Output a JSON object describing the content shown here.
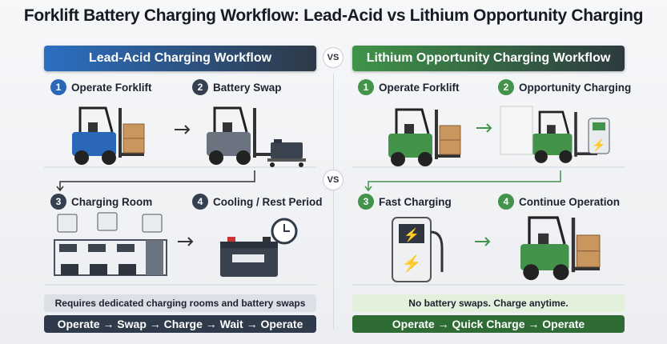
{
  "title": "Forklift Battery Charging Workflow: Lead-Acid vs Lithium Opportunity Charging",
  "vs_label": "VS",
  "left": {
    "header": "Lead-Acid Charging Workflow",
    "steps": [
      {
        "num": "1",
        "label": "Operate Forklift"
      },
      {
        "num": "2",
        "label": "Battery Swap"
      },
      {
        "num": "3",
        "label": "Charging Room"
      },
      {
        "num": "4",
        "label": "Cooling / Rest Period"
      }
    ],
    "note": "Requires dedicated charging rooms and battery swaps",
    "flow": "Operate → Swap → Charge → Wait → Operate"
  },
  "right": {
    "header": "Lithium Opportunity Charging Workflow",
    "steps": [
      {
        "num": "1",
        "label": "Operate Forklift"
      },
      {
        "num": "2",
        "label": "Opportunity Charging"
      },
      {
        "num": "3",
        "label": "Fast Charging"
      },
      {
        "num": "4",
        "label": "Continue Operation"
      }
    ],
    "note": "No battery swaps. Charge anytime.",
    "flow": "Operate → Quick Charge → Operate"
  },
  "colors": {
    "lead_acid": "#2a67b8",
    "lithium": "#43934b",
    "dark": "#34404f"
  }
}
